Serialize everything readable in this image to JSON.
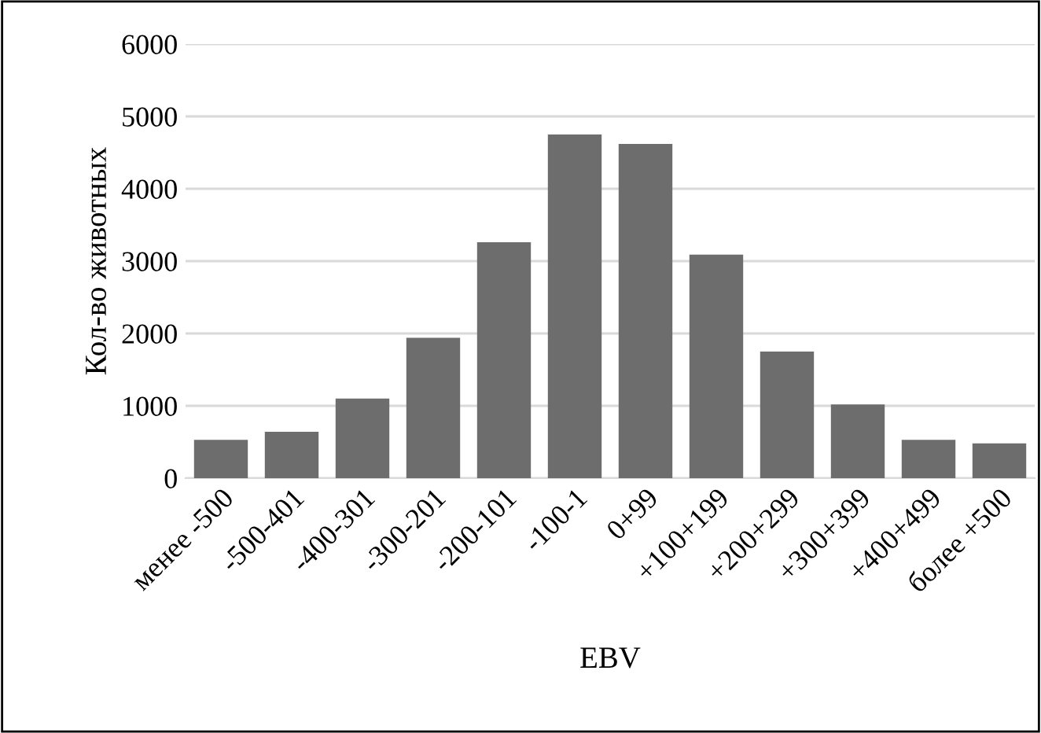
{
  "chart_data": {
    "type": "bar",
    "categories": [
      "менее -500",
      "-500-401",
      "-400-301",
      "-300-201",
      "-200-101",
      "-100-1",
      "0+99",
      "+100+199",
      "+200+299",
      "+300+399",
      "+400+499",
      "более +500"
    ],
    "values": [
      530,
      640,
      1100,
      1940,
      3260,
      4750,
      4620,
      3090,
      1750,
      1020,
      530,
      480
    ],
    "color": "#6d6d6d",
    "xlabel": "EBV",
    "ylabel": "Кол-во животных",
    "ylim": [
      0,
      6000
    ],
    "yticks": [
      0,
      1000,
      2000,
      3000,
      4000,
      5000,
      6000
    ],
    "grid": "y",
    "legend": false
  }
}
